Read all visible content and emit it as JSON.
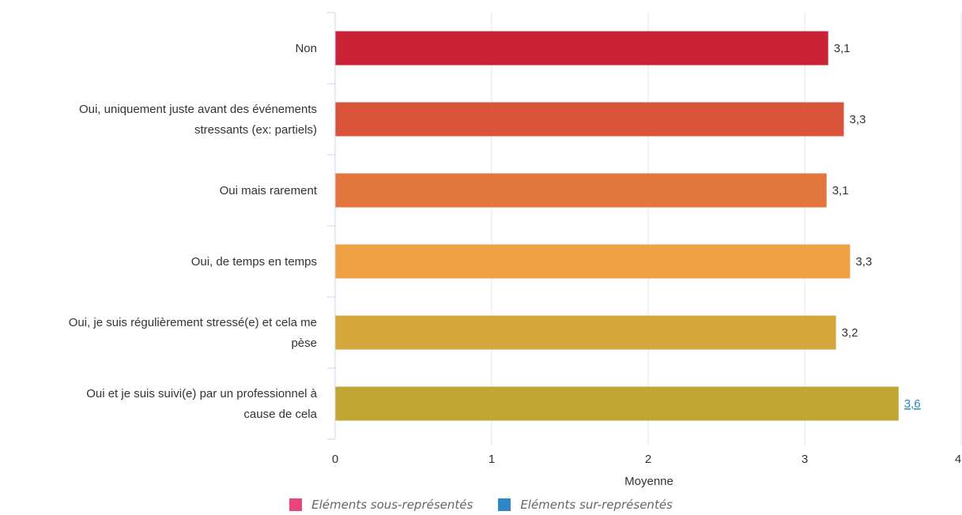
{
  "chart_data": {
    "type": "bar",
    "orientation": "horizontal",
    "categories": [
      [
        "Non"
      ],
      [
        "Oui, uniquement juste avant des événements",
        "stressants (ex: partiels)"
      ],
      [
        "Oui mais rarement"
      ],
      [
        "Oui, de temps en temps"
      ],
      [
        "Oui, je suis régulièrement stressé(e) et cela me",
        "pèse"
      ],
      [
        "Oui et je suis suivi(e) par un professionnel à",
        "cause de cela"
      ]
    ],
    "values": [
      3.15,
      3.25,
      3.14,
      3.29,
      3.2,
      3.6
    ],
    "value_labels": [
      "3,1",
      "3,3",
      "3,1",
      "3,3",
      "3,2",
      "3,6"
    ],
    "highlighted": [
      false,
      false,
      false,
      false,
      false,
      true
    ],
    "bar_colors": [
      "#c92236",
      "#d9543a",
      "#e3763f",
      "#eea043",
      "#d4a83d",
      "#c2a635"
    ],
    "xlabel": "Moyenne",
    "xlim": [
      0,
      4
    ],
    "xticks": [
      "0",
      "1",
      "2",
      "3",
      "4"
    ],
    "legend_position": "bottom",
    "legend": [
      {
        "label": "Eléments sous-représentés",
        "color": "#e8457f"
      },
      {
        "label": "Eléments sur-représentés",
        "color": "#2f86c4"
      }
    ]
  }
}
